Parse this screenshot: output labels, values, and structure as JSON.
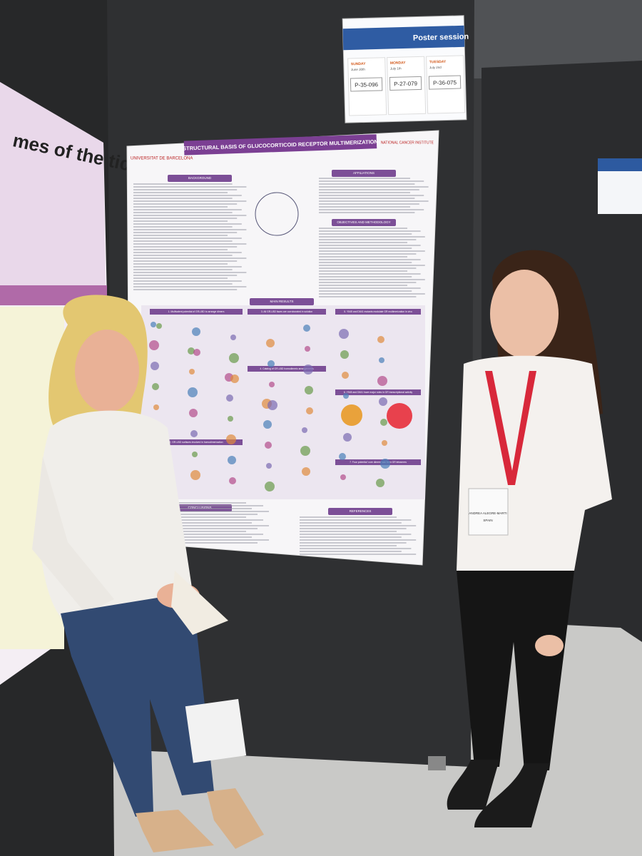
{
  "sign": {
    "title": "Poster session",
    "days": [
      {
        "day": "SUNDAY",
        "date": "June 30th",
        "code": "P-35-096"
      },
      {
        "day": "MONDAY",
        "date": "July 1th",
        "code": "P-27-079"
      },
      {
        "day": "TUESDAY",
        "date": "July 2nd",
        "code": "P-36-075"
      }
    ]
  },
  "left_poster": {
    "title_fragment": "mes of the tick-borne"
  },
  "poster": {
    "title": "STRUCTURAL BASIS OF GLUCOCORTICOID RECEPTOR MULTIMERIZATION",
    "institution": "UNIVERSITAT DE BARCELONA",
    "partner": "NATIONAL CANCER INSTITUTE",
    "sections": [
      "BACKGROUND",
      "AFFILIATIONS",
      "OBJECTIVES AND METHODOLOGY",
      "MAIN RESULTS",
      "CONCLUSIONS",
      "REFERENCES"
    ],
    "results": [
      "1. Multivalent potential of GR-LBD to arrange dimers",
      "3. All GR-LBD faces are corroborated in solution",
      "5. Y545 and D641 mutants modulate GR multimerization in vivo",
      "4. Catalog of GR-LBD homodimeric arrangements",
      "6. Y545 and D641 have major roles in GR transcriptional activity",
      "7. Four potential 'core dimers' can form GR tetramers",
      "2. GR-LBD surfaces involved in homodimerization"
    ]
  },
  "badge": {
    "name": "ANDREA ALEGRE-MARTI",
    "country": "SPAIN"
  }
}
